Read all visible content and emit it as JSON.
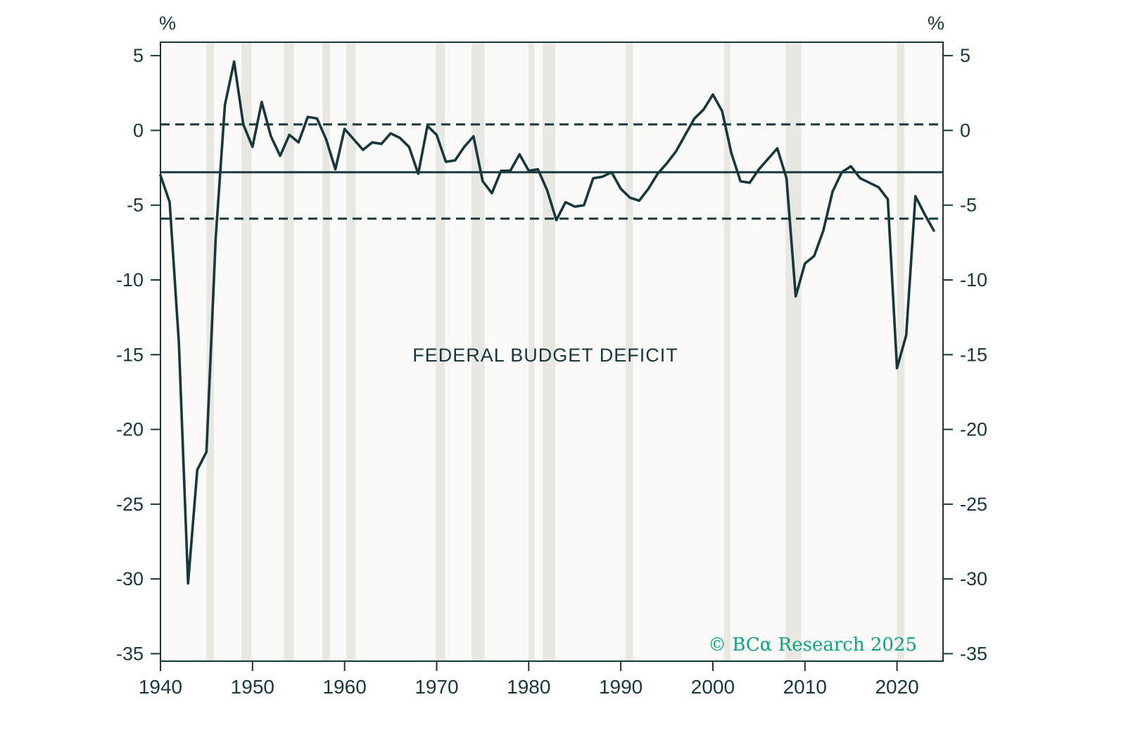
{
  "chart_data": {
    "type": "line",
    "title": "FEDERAL BUDGET DEFICIT",
    "ylabel_left": "%",
    "ylabel_right": "%",
    "years": {
      "start": 1940,
      "end": 2024
    },
    "series": [
      {
        "name": "Federal budget deficit (% of GDP)",
        "values": [
          -3.0,
          -4.8,
          -14.2,
          -30.3,
          -22.7,
          -21.5,
          -7.2,
          1.7,
          4.6,
          0.4,
          -1.1,
          1.9,
          -0.4,
          -1.7,
          -0.3,
          -0.8,
          0.9,
          0.8,
          -0.6,
          -2.6,
          0.1,
          -0.6,
          -1.3,
          -0.8,
          -0.9,
          -0.2,
          -0.5,
          -1.1,
          -2.9,
          0.3,
          -0.3,
          -2.1,
          -2.0,
          -1.1,
          -0.4,
          -3.4,
          -4.2,
          -2.7,
          -2.7,
          -1.6,
          -2.7,
          -2.6,
          -4.0,
          -6.0,
          -4.8,
          -5.1,
          -5.0,
          -3.2,
          -3.1,
          -2.8,
          -3.9,
          -4.5,
          -4.7,
          -3.9,
          -2.9,
          -2.2,
          -1.4,
          -0.3,
          0.8,
          1.4,
          2.4,
          1.3,
          -1.5,
          -3.4,
          -3.5,
          -2.6,
          -1.9,
          -1.2,
          -3.2,
          -11.1,
          -8.9,
          -8.4,
          -6.7,
          -4.1,
          -2.8,
          -2.4,
          -3.2,
          -3.5,
          -3.8,
          -4.6,
          -15.9,
          -13.7,
          -4.4,
          -5.6,
          -6.7
        ]
      }
    ],
    "xlim": [
      1940,
      2025
    ],
    "ylim": [
      -35.5,
      5.9
    ],
    "yticks": [
      5,
      0,
      -5,
      -10,
      -15,
      -20,
      -25,
      -30,
      -35
    ],
    "xticks": [
      1940,
      1950,
      1960,
      1970,
      1980,
      1990,
      2000,
      2010,
      2020
    ],
    "reference_lines": {
      "solid": -2.8,
      "dashed": [
        0.4,
        -5.9
      ]
    },
    "recession_bands": [
      [
        1945.0,
        1945.8
      ],
      [
        1948.8,
        1949.9
      ],
      [
        1953.4,
        1954.5
      ],
      [
        1957.6,
        1958.4
      ],
      [
        1960.2,
        1961.2
      ],
      [
        1969.9,
        1970.9
      ],
      [
        1973.8,
        1975.2
      ],
      [
        1980.0,
        1980.6
      ],
      [
        1981.5,
        1982.9
      ],
      [
        1990.5,
        1991.3
      ],
      [
        2001.2,
        2001.9
      ],
      [
        2007.9,
        2009.6
      ],
      [
        2020.0,
        2020.8
      ]
    ],
    "grid": false,
    "legend": "none"
  },
  "watermark": {
    "text": "© BCα Research 2025"
  },
  "colors": {
    "line": "#16383c",
    "axis": "#16383c",
    "text": "#16383c",
    "recession_band": "#e8e7e2",
    "plot_background": "#fbfaf8",
    "watermark_green": "#0aa57c",
    "background": "#ffffff"
  }
}
